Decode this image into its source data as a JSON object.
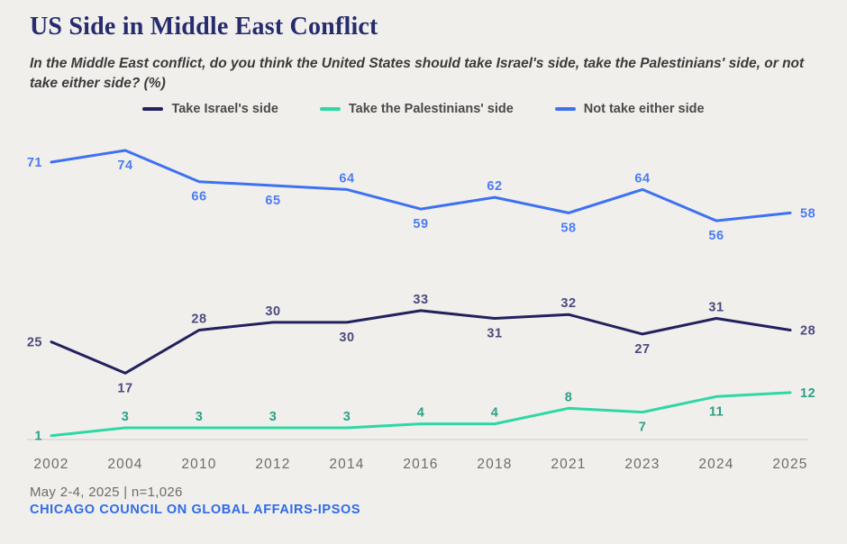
{
  "header": {
    "title": "US Side in Middle East Conflict",
    "subtitle": "In the Middle East conflict, do you think the United States should take Israel's side, take the Palestinians' side, or not take either side? (%)"
  },
  "footer": {
    "survey_info": "May 2-4, 2025 | n=1,026",
    "source": "CHICAGO COUNCIL ON GLOBAL AFFAIRS-IPSOS"
  },
  "colors": {
    "background": "#f1efec",
    "title": "#262c6e",
    "axis": "#dcd8d4",
    "year_label": "#6f6b68",
    "source_link": "#2e6be6"
  },
  "chart_data": {
    "type": "line",
    "title": "US Side in Middle East Conflict",
    "xlabel": "",
    "ylabel": "",
    "ylim": [
      0,
      78
    ],
    "grid": false,
    "legend_position": "top",
    "data_labels": true,
    "categories": [
      "2002",
      "2004",
      "2010",
      "2012",
      "2014",
      "2016",
      "2018",
      "2021",
      "2023",
      "2024",
      "2025"
    ],
    "series": [
      {
        "name": "Take Israel's side",
        "color": "#22215e",
        "label_color": "#4b4a7e",
        "values": [
          25,
          17,
          28,
          30,
          30,
          33,
          31,
          32,
          27,
          31,
          28
        ],
        "label_positions": [
          "left",
          "below",
          "above",
          "above",
          "below",
          "above",
          "below",
          "above",
          "below",
          "above",
          "right"
        ]
      },
      {
        "name": "Take the Palestinians' side",
        "color": "#2dd8a5",
        "label_color": "#2aa186",
        "values": [
          1,
          3,
          3,
          3,
          3,
          4,
          4,
          8,
          7,
          11,
          12
        ],
        "label_positions": [
          "left",
          "above",
          "above",
          "above",
          "above",
          "above",
          "above",
          "above",
          "below",
          "below",
          "right"
        ]
      },
      {
        "name": "Not take either side",
        "color": "#3e71f2",
        "label_color": "#4a7cf2",
        "values": [
          71,
          74,
          66,
          65,
          64,
          59,
          62,
          58,
          64,
          56,
          58
        ],
        "label_positions": [
          "left",
          "below",
          "below",
          "below",
          "above",
          "below",
          "above",
          "below",
          "above",
          "below",
          "right"
        ]
      }
    ]
  }
}
